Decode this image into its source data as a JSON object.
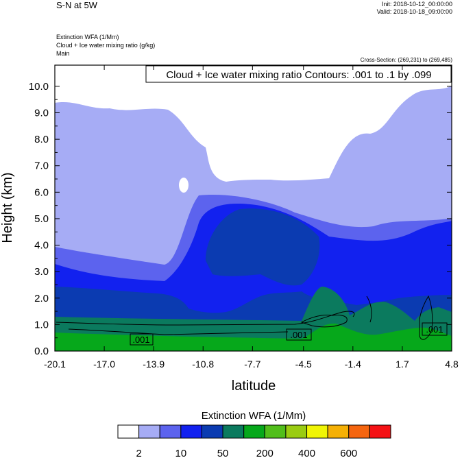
{
  "header": {
    "title": "S-N at 5W",
    "init": "Init: 2018-10-12_00:00:00",
    "valid": "Valid: 2018-10-18_09:00:00",
    "fields": [
      "Extinction WFA   (1/Mm)",
      "Cloud + Ice water mixing ratio   (g/kg)",
      "Main"
    ],
    "cross_section": "Cross-Section: (269,231) to (269,485)"
  },
  "colors": {
    "levels": [
      "#ffffff",
      "#a6acf5",
      "#5c63ee",
      "#1221ef",
      "#0b3bb1",
      "#0b7a5e",
      "#06a81b",
      "#51be1b",
      "#9acc12",
      "#f0f505",
      "#f5b005",
      "#f5650f",
      "#f51215"
    ],
    "contour": "#000000"
  },
  "chart_data": {
    "type": "contour",
    "title": "Cloud + Ice water mixing ratio Contours: .001 to .1 by .099",
    "xlabel": "latitude",
    "ylabel": "Height (km)",
    "x_ticks": [
      "-20.1",
      "-17.0",
      "-13.9",
      "-10.8",
      "-7.7",
      "-4.5",
      "-1.4",
      "1.7",
      "4.8"
    ],
    "y_ticks": [
      "0.0",
      "1.0",
      "2.0",
      "3.0",
      "4.0",
      "5.0",
      "6.0",
      "7.0",
      "8.0",
      "9.0",
      "10.0"
    ],
    "xlim": [
      -20.1,
      4.8
    ],
    "ylim": [
      0,
      10.8
    ],
    "contour_labels": [
      {
        "text": ".001",
        "lat": -14.1,
        "height": 0.4
      },
      {
        "text": ".001",
        "lat": -5.1,
        "height": 0.55
      },
      {
        "text": ".001",
        "lat": 3.3,
        "height": 0.8
      }
    ],
    "colorbar": {
      "title": "Extinction WFA  (1/Mm)",
      "tick_labels": [
        "2",
        "10",
        "50",
        "200",
        "400",
        "600"
      ]
    }
  }
}
